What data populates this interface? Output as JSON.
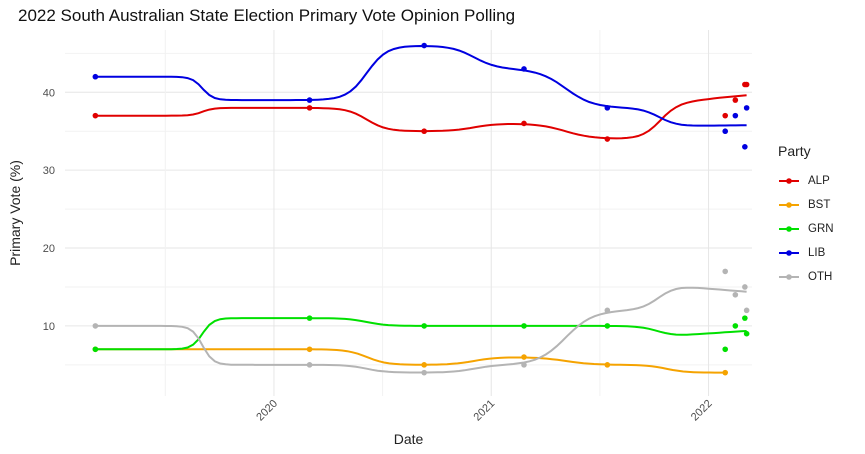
{
  "chart_data": {
    "type": "line",
    "title": "2022 South Australian State Election Primary Vote Opinion Polling",
    "xlabel": "Date",
    "ylabel": "Primary Vote (%)",
    "x_ticks": [
      "2020",
      "2021",
      "2022"
    ],
    "y_ticks": [
      10,
      20,
      30,
      40
    ],
    "xlim": [
      "2019-01-15",
      "2022-03-15"
    ],
    "ylim": [
      1,
      48
    ],
    "grid": true,
    "legend": {
      "title": "Party",
      "placement": "right"
    },
    "smoothing": "loess",
    "series": [
      {
        "name": "ALP",
        "color": "#e00000",
        "points": [
          [
            "2019-03-07",
            37
          ],
          [
            "2020-03-01",
            38
          ],
          [
            "2020-09-10",
            35
          ],
          [
            "2021-02-25",
            36
          ],
          [
            "2021-07-15",
            34
          ],
          [
            "2022-01-29",
            37
          ],
          [
            "2022-02-15",
            39
          ],
          [
            "2022-03-03",
            41
          ],
          [
            "2022-03-06",
            41
          ]
        ]
      },
      {
        "name": "BST",
        "color": "#f5a300",
        "points": [
          [
            "2019-03-07",
            7
          ],
          [
            "2020-03-01",
            7
          ],
          [
            "2020-09-10",
            5
          ],
          [
            "2021-02-25",
            6
          ],
          [
            "2021-07-15",
            5
          ],
          [
            "2022-01-29",
            4
          ]
        ]
      },
      {
        "name": "GRN",
        "color": "#00e000",
        "points": [
          [
            "2019-03-07",
            7
          ],
          [
            "2020-03-01",
            11
          ],
          [
            "2020-09-10",
            10
          ],
          [
            "2021-02-25",
            10
          ],
          [
            "2021-07-15",
            10
          ],
          [
            "2022-01-29",
            7
          ],
          [
            "2022-02-15",
            10
          ],
          [
            "2022-03-03",
            11
          ],
          [
            "2022-03-06",
            9
          ]
        ]
      },
      {
        "name": "LIB",
        "color": "#0000e0",
        "points": [
          [
            "2019-03-07",
            42
          ],
          [
            "2020-03-01",
            39
          ],
          [
            "2020-09-10",
            46
          ],
          [
            "2021-02-25",
            43
          ],
          [
            "2021-07-15",
            38
          ],
          [
            "2022-01-29",
            35
          ],
          [
            "2022-02-15",
            37
          ],
          [
            "2022-03-03",
            33
          ],
          [
            "2022-03-06",
            38
          ]
        ]
      },
      {
        "name": "OTH",
        "color": "#b4b4b4",
        "points": [
          [
            "2019-03-07",
            10
          ],
          [
            "2020-03-01",
            5
          ],
          [
            "2020-09-10",
            4
          ],
          [
            "2021-02-25",
            5
          ],
          [
            "2021-07-15",
            12
          ],
          [
            "2022-01-29",
            17
          ],
          [
            "2022-02-15",
            14
          ],
          [
            "2022-03-03",
            15
          ],
          [
            "2022-03-06",
            12
          ]
        ]
      }
    ]
  }
}
